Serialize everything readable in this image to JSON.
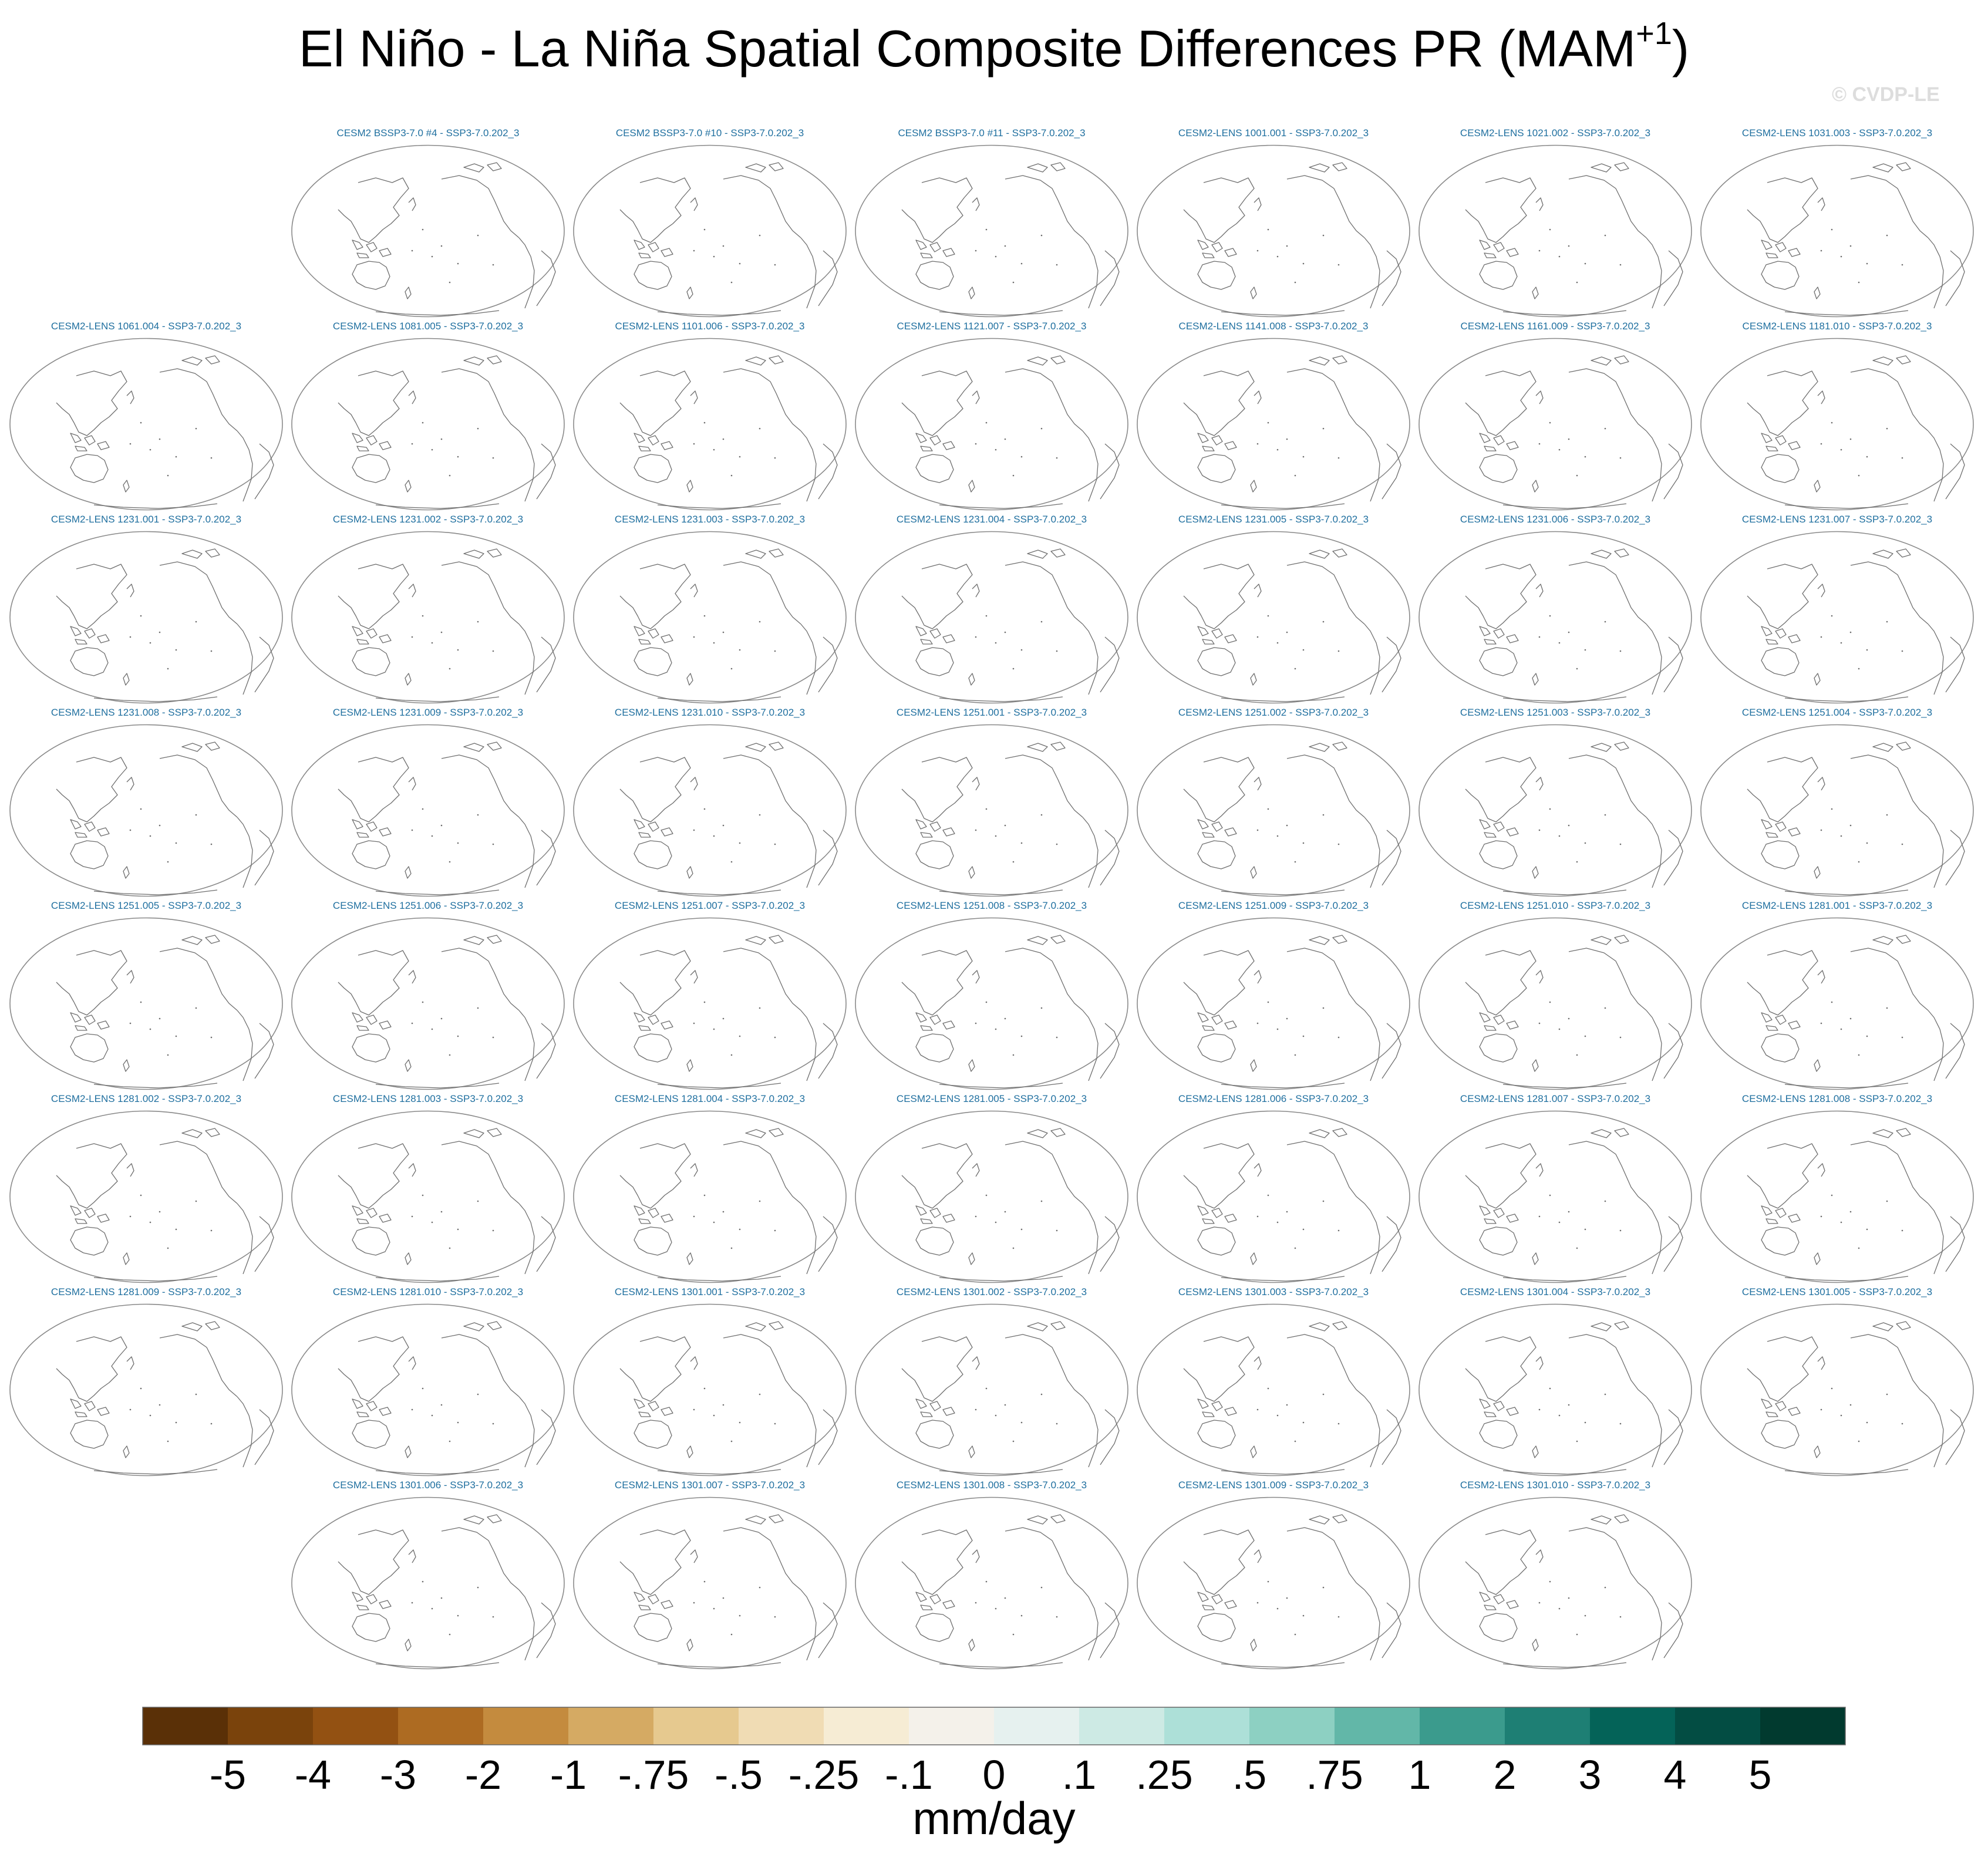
{
  "title": {
    "main": "El Niño - La Niña Spatial Composite Differences PR (MAM",
    "superscript": "+1",
    "close": ")"
  },
  "watermark": "© CVDP-LE",
  "panel_title_color": "#1f6f9f",
  "chart_data": {
    "type": "heatmap",
    "title": "El Niño - La Niña Spatial Composite Differences PR (MAM+1)",
    "map_projection": "robinson, pacific-centred, coastlines only",
    "panels_note": "all panels show coastlines only; no shaded anomaly values are visible",
    "panels": [
      {
        "row": 0,
        "col": 1,
        "label": "CESM2 BSSP3-7.0 #4 - SSP3-7.0.202_3"
      },
      {
        "row": 0,
        "col": 2,
        "label": "CESM2 BSSP3-7.0 #10 - SSP3-7.0.202_3"
      },
      {
        "row": 0,
        "col": 3,
        "label": "CESM2 BSSP3-7.0 #11 - SSP3-7.0.202_3"
      },
      {
        "row": 0,
        "col": 4,
        "label": "CESM2-LENS 1001.001 - SSP3-7.0.202_3"
      },
      {
        "row": 0,
        "col": 5,
        "label": "CESM2-LENS 1021.002 - SSP3-7.0.202_3"
      },
      {
        "row": 0,
        "col": 6,
        "label": "CESM2-LENS 1031.003 - SSP3-7.0.202_3"
      },
      {
        "row": 1,
        "col": 0,
        "label": "CESM2-LENS 1061.004 - SSP3-7.0.202_3"
      },
      {
        "row": 1,
        "col": 1,
        "label": "CESM2-LENS 1081.005 - SSP3-7.0.202_3"
      },
      {
        "row": 1,
        "col": 2,
        "label": "CESM2-LENS 1101.006 - SSP3-7.0.202_3"
      },
      {
        "row": 1,
        "col": 3,
        "label": "CESM2-LENS 1121.007 - SSP3-7.0.202_3"
      },
      {
        "row": 1,
        "col": 4,
        "label": "CESM2-LENS 1141.008 - SSP3-7.0.202_3"
      },
      {
        "row": 1,
        "col": 5,
        "label": "CESM2-LENS 1161.009 - SSP3-7.0.202_3"
      },
      {
        "row": 1,
        "col": 6,
        "label": "CESM2-LENS 1181.010 - SSP3-7.0.202_3"
      },
      {
        "row": 2,
        "col": 0,
        "label": "CESM2-LENS 1231.001 - SSP3-7.0.202_3"
      },
      {
        "row": 2,
        "col": 1,
        "label": "CESM2-LENS 1231.002 - SSP3-7.0.202_3"
      },
      {
        "row": 2,
        "col": 2,
        "label": "CESM2-LENS 1231.003 - SSP3-7.0.202_3"
      },
      {
        "row": 2,
        "col": 3,
        "label": "CESM2-LENS 1231.004 - SSP3-7.0.202_3"
      },
      {
        "row": 2,
        "col": 4,
        "label": "CESM2-LENS 1231.005 - SSP3-7.0.202_3"
      },
      {
        "row": 2,
        "col": 5,
        "label": "CESM2-LENS 1231.006 - SSP3-7.0.202_3"
      },
      {
        "row": 2,
        "col": 6,
        "label": "CESM2-LENS 1231.007 - SSP3-7.0.202_3"
      },
      {
        "row": 3,
        "col": 0,
        "label": "CESM2-LENS 1231.008 - SSP3-7.0.202_3"
      },
      {
        "row": 3,
        "col": 1,
        "label": "CESM2-LENS 1231.009 - SSP3-7.0.202_3"
      },
      {
        "row": 3,
        "col": 2,
        "label": "CESM2-LENS 1231.010 - SSP3-7.0.202_3"
      },
      {
        "row": 3,
        "col": 3,
        "label": "CESM2-LENS 1251.001 - SSP3-7.0.202_3"
      },
      {
        "row": 3,
        "col": 4,
        "label": "CESM2-LENS 1251.002 - SSP3-7.0.202_3"
      },
      {
        "row": 3,
        "col": 5,
        "label": "CESM2-LENS 1251.003 - SSP3-7.0.202_3"
      },
      {
        "row": 3,
        "col": 6,
        "label": "CESM2-LENS 1251.004 - SSP3-7.0.202_3"
      },
      {
        "row": 4,
        "col": 0,
        "label": "CESM2-LENS 1251.005 - SSP3-7.0.202_3"
      },
      {
        "row": 4,
        "col": 1,
        "label": "CESM2-LENS 1251.006 - SSP3-7.0.202_3"
      },
      {
        "row": 4,
        "col": 2,
        "label": "CESM2-LENS 1251.007 - SSP3-7.0.202_3"
      },
      {
        "row": 4,
        "col": 3,
        "label": "CESM2-LENS 1251.008 - SSP3-7.0.202_3"
      },
      {
        "row": 4,
        "col": 4,
        "label": "CESM2-LENS 1251.009 - SSP3-7.0.202_3"
      },
      {
        "row": 4,
        "col": 5,
        "label": "CESM2-LENS 1251.010 - SSP3-7.0.202_3"
      },
      {
        "row": 4,
        "col": 6,
        "label": "CESM2-LENS 1281.001 - SSP3-7.0.202_3"
      },
      {
        "row": 5,
        "col": 0,
        "label": "CESM2-LENS 1281.002 - SSP3-7.0.202_3"
      },
      {
        "row": 5,
        "col": 1,
        "label": "CESM2-LENS 1281.003 - SSP3-7.0.202_3"
      },
      {
        "row": 5,
        "col": 2,
        "label": "CESM2-LENS 1281.004 - SSP3-7.0.202_3"
      },
      {
        "row": 5,
        "col": 3,
        "label": "CESM2-LENS 1281.005 - SSP3-7.0.202_3"
      },
      {
        "row": 5,
        "col": 4,
        "label": "CESM2-LENS 1281.006 - SSP3-7.0.202_3"
      },
      {
        "row": 5,
        "col": 5,
        "label": "CESM2-LENS 1281.007 - SSP3-7.0.202_3"
      },
      {
        "row": 5,
        "col": 6,
        "label": "CESM2-LENS 1281.008 - SSP3-7.0.202_3"
      },
      {
        "row": 6,
        "col": 0,
        "label": "CESM2-LENS 1281.009 - SSP3-7.0.202_3"
      },
      {
        "row": 6,
        "col": 1,
        "label": "CESM2-LENS 1281.010 - SSP3-7.0.202_3"
      },
      {
        "row": 6,
        "col": 2,
        "label": "CESM2-LENS 1301.001 - SSP3-7.0.202_3"
      },
      {
        "row": 6,
        "col": 3,
        "label": "CESM2-LENS 1301.002 - SSP3-7.0.202_3"
      },
      {
        "row": 6,
        "col": 4,
        "label": "CESM2-LENS 1301.003 - SSP3-7.0.202_3"
      },
      {
        "row": 6,
        "col": 5,
        "label": "CESM2-LENS 1301.004 - SSP3-7.0.202_3"
      },
      {
        "row": 6,
        "col": 6,
        "label": "CESM2-LENS 1301.005 - SSP3-7.0.202_3"
      },
      {
        "row": 7,
        "col": 1,
        "label": "CESM2-LENS 1301.006 - SSP3-7.0.202_3"
      },
      {
        "row": 7,
        "col": 2,
        "label": "CESM2-LENS 1301.007 - SSP3-7.0.202_3"
      },
      {
        "row": 7,
        "col": 3,
        "label": "CESM2-LENS 1301.008 - SSP3-7.0.202_3"
      },
      {
        "row": 7,
        "col": 4,
        "label": "CESM2-LENS 1301.009 - SSP3-7.0.202_3"
      },
      {
        "row": 7,
        "col": 5,
        "label": "CESM2-LENS 1301.010 - SSP3-7.0.202_3"
      }
    ],
    "colorbar": {
      "units": "mm/day",
      "levels": [
        "-5",
        "-4",
        "-3",
        "-2",
        "-1",
        "-.75",
        "-.5",
        "-.25",
        "-.1",
        "0",
        ".1",
        ".25",
        ".5",
        ".75",
        "1",
        "2",
        "3",
        "4",
        "5"
      ],
      "colors": [
        "#5a3007",
        "#7a430c",
        "#935112",
        "#ad6b22",
        "#c48b3e",
        "#d5aa63",
        "#e6c98f",
        "#f0dcb4",
        "#f6ecd4",
        "#f4f1ea",
        "#e6f1ef",
        "#cdeae4",
        "#ade0d8",
        "#8dd0c2",
        "#62b7a8",
        "#3b9b8d",
        "#1e7f74",
        "#046358",
        "#034d43",
        "#013a2f"
      ]
    }
  }
}
